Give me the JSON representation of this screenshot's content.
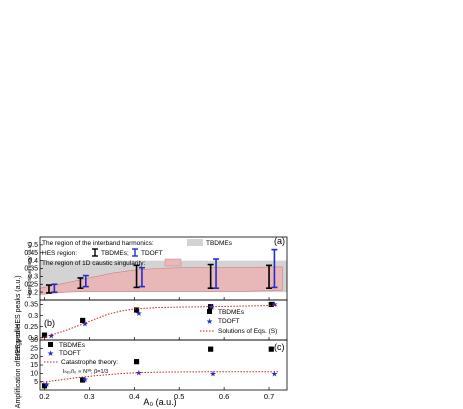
{
  "chart_data": [
    {
      "type": "errorbar",
      "panel": "(a)",
      "ylabel": "Harmonic energy (a.u.)",
      "ylim": [
        0.15,
        0.55
      ],
      "yticks": [
        "0.2",
        "0.25",
        "0.3",
        "0.35",
        "0.4",
        "0.45",
        "0.5"
      ],
      "xlim": [
        0.19,
        0.74
      ],
      "legend": {
        "interband_label": "The region of the interband harmonics:",
        "tbdme_fill_label": "TBDMEs",
        "hes_label": "HES region:",
        "tbdme_bar_label": "TBDMEs;",
        "tdoft_bar_label": "TDOFT",
        "caustic_label": "The region of 1D caustic singularity:"
      },
      "interband_region": {
        "x": [
          0.19,
          0.74
        ],
        "ymin": 0.2,
        "ymax": 0.4
      },
      "caustic_region": {
        "x": [
          0.19,
          0.25,
          0.3,
          0.35,
          0.4,
          0.45,
          0.5,
          0.57,
          0.65,
          0.71,
          0.73
        ],
        "lower": [
          0.185,
          0.2,
          0.205,
          0.205,
          0.205,
          0.205,
          0.205,
          0.205,
          0.205,
          0.21,
          0.21
        ],
        "upper": [
          0.225,
          0.26,
          0.29,
          0.32,
          0.34,
          0.35,
          0.355,
          0.355,
          0.355,
          0.36,
          0.36
        ]
      },
      "series": [
        {
          "name": "TBDMEs",
          "color": "#000000",
          "x": [
            0.21,
            0.28,
            0.405,
            0.57,
            0.7
          ],
          "low": [
            0.195,
            0.225,
            0.23,
            0.225,
            0.225
          ],
          "high": [
            0.245,
            0.29,
            0.37,
            0.375,
            0.37
          ]
        },
        {
          "name": "TDOFT",
          "color": "#1f2fcc",
          "x": [
            0.222,
            0.292,
            0.417,
            0.582,
            0.712
          ],
          "low": [
            0.2,
            0.235,
            0.235,
            0.225,
            0.23
          ],
          "high": [
            0.25,
            0.305,
            0.355,
            0.41,
            0.47
          ]
        }
      ]
    },
    {
      "type": "scatter",
      "panel": "(b)",
      "ylabel": "Energy of HES peaks (a.u.)",
      "ylim": [
        0.19,
        0.37
      ],
      "yticks": [
        "0.2",
        "0.25",
        "0.3",
        "0.35"
      ],
      "xlim": [
        0.19,
        0.74
      ],
      "series": [
        {
          "name": "TBDMEs",
          "marker": "square",
          "color": "#000000",
          "x": [
            0.2,
            0.285,
            0.405,
            0.57,
            0.705
          ],
          "y": [
            0.212,
            0.278,
            0.325,
            0.34,
            0.35
          ]
        },
        {
          "name": "TDOFT",
          "marker": "star",
          "color": "#1f2fcc",
          "x": [
            0.215,
            0.29,
            0.41,
            0.572,
            0.712
          ],
          "y": [
            0.21,
            0.265,
            0.312,
            0.34,
            0.352
          ]
        },
        {
          "name": "Solutions of Eqs. (S)",
          "marker": "dotted-line",
          "color": "#cc1f1f",
          "x": [
            0.19,
            0.22,
            0.25,
            0.28,
            0.31,
            0.34,
            0.37,
            0.4,
            0.45,
            0.5,
            0.57,
            0.65,
            0.72
          ],
          "y": [
            0.2,
            0.215,
            0.235,
            0.258,
            0.282,
            0.305,
            0.32,
            0.33,
            0.336,
            0.338,
            0.34,
            0.343,
            0.346
          ]
        }
      ]
    },
    {
      "type": "scatter",
      "panel": "(c)",
      "ylabel": "Amplification of HES peaks",
      "ylim": [
        0,
        30
      ],
      "yticks": [
        "5",
        "10",
        "15",
        "20",
        "25",
        "30"
      ],
      "xlim": [
        0.19,
        0.74
      ],
      "xticks": [
        "0.2",
        "0.3",
        "0.4",
        "0.5",
        "0.6",
        "0.7"
      ],
      "xlabel": "A₀ (a.u.)",
      "annotation": {
        "line1": "Catastrophe theory:",
        "line2": "Iₕₑₛ/I₀ ∝ N³ᵟ;   β=1/3"
      },
      "series": [
        {
          "name": "TBDMEs",
          "marker": "square",
          "color": "#000000",
          "x": [
            0.2,
            0.285,
            0.405,
            0.57,
            0.705
          ],
          "y": [
            2.5,
            6.0,
            17.0,
            24.5,
            24.5
          ]
        },
        {
          "name": "TDOFT",
          "marker": "star",
          "color": "#1f2fcc",
          "x": [
            0.205,
            0.29,
            0.41,
            0.575,
            0.712
          ],
          "y": [
            3.5,
            6.5,
            10.5,
            10.0,
            10.0
          ]
        },
        {
          "name": "",
          "marker": "dotted-line",
          "color": "#cc1f1f",
          "x": [
            0.19,
            0.22,
            0.26,
            0.3,
            0.34,
            0.38,
            0.42,
            0.48,
            0.55,
            0.62,
            0.68,
            0.72
          ],
          "y": [
            4.5,
            5.5,
            7.0,
            8.2,
            9.2,
            10.0,
            10.5,
            10.8,
            10.9,
            11.0,
            11.0,
            11.0
          ]
        }
      ]
    }
  ]
}
